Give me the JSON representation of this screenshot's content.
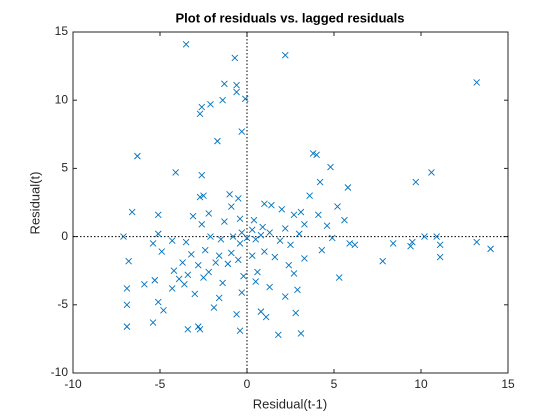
{
  "chart_data": {
    "type": "scatter",
    "title": "Plot of residuals vs. lagged residuals",
    "x_label": "Residual(t-1)",
    "y_label": "Residual(t)",
    "color": "#0072bd",
    "marker": "x",
    "xlim": [
      -10,
      15
    ],
    "ylim": [
      -10,
      15
    ],
    "xticks": [
      -10,
      -5,
      0,
      5,
      10,
      15
    ],
    "yticks": [
      -10,
      -5,
      0,
      5,
      10,
      15
    ],
    "x": [
      -3.5,
      -0.7,
      2.2,
      13.2,
      -1.3,
      -0.6,
      -2.1,
      -0.6,
      -1.4,
      -0.1,
      -2.6,
      -2.7,
      -0.3,
      -1.7,
      -6.3,
      -4.1,
      -2.6,
      3.8,
      4.0,
      4.8,
      10.6,
      9.7,
      4.2,
      5.8,
      3.6,
      -2.5,
      -2.7,
      -1.0,
      -0.5,
      -0.9,
      -2.2,
      -3.1,
      -5.1,
      -6.6,
      -2.6,
      -1.3,
      -0.4,
      0.4,
      1.0,
      1.4,
      2.0,
      2.7,
      3.1,
      4.1,
      5.2,
      4.6,
      5.6,
      3.3,
      2.2,
      0.9,
      0.3,
      -0.3,
      -0.8,
      -1.5,
      -2.1,
      -3.5,
      -4.3,
      -5.4,
      -7.1,
      -6.8,
      -5.1,
      -4.9,
      0.0,
      0.5,
      0.8,
      1.3,
      1.9,
      2.5,
      3.0,
      4.9,
      5.9,
      6.2,
      7.8,
      9.4,
      9.5,
      10.2,
      10.9,
      11.1,
      11.1,
      13.2,
      14.0,
      8.4,
      -0.4,
      -0.9,
      -1.6,
      -2.4,
      -3.2,
      -3.7,
      -4.2,
      -3.9,
      -3.4,
      -2.8,
      -2.2,
      -1.8,
      -1.1,
      -0.5,
      0.3,
      1.0,
      1.6,
      2.4,
      3.3,
      4.3,
      0.6,
      -0.2,
      -1.4,
      -2.5,
      -3.6,
      -4.3,
      -5.3,
      -5.9,
      -6.9,
      -6.9,
      -5.1,
      -5.4,
      -4.8,
      -3.4,
      -2.7,
      -2.8,
      -0.4,
      -0.6,
      0.8,
      1.1,
      -1.6,
      -0.3,
      0.5,
      1.3,
      2.2,
      2.7,
      2.9,
      2.8,
      3.1,
      1.8,
      -6.9,
      5.3,
      -3.0,
      -1.9
    ],
    "y": [
      14.1,
      13.1,
      13.3,
      11.3,
      11.2,
      11.1,
      9.7,
      10.6,
      10.0,
      10.1,
      9.5,
      9.0,
      7.7,
      7.0,
      5.9,
      4.7,
      4.5,
      6.1,
      6.0,
      5.1,
      4.7,
      4.0,
      4.0,
      3.6,
      3.0,
      3.0,
      2.9,
      3.1,
      2.8,
      2.2,
      1.7,
      1.5,
      1.6,
      1.8,
      0.9,
      1.1,
      1.3,
      1.2,
      2.4,
      2.3,
      2.0,
      1.6,
      1.8,
      1.6,
      2.2,
      0.8,
      1.2,
      0.9,
      0.6,
      0.7,
      0.5,
      0.3,
      0.0,
      -0.2,
      0.0,
      -0.4,
      -0.3,
      -0.5,
      0.0,
      -1.8,
      0.2,
      -1.1,
      -0.1,
      -0.2,
      0.1,
      0.3,
      -0.3,
      -0.6,
      0.2,
      -0.1,
      -0.5,
      -0.6,
      -1.8,
      -0.7,
      -0.4,
      0.0,
      0.0,
      -0.6,
      -1.5,
      -0.4,
      -0.9,
      -0.5,
      -0.5,
      -1.2,
      -1.4,
      -1.0,
      -1.3,
      -1.9,
      -2.5,
      -3.1,
      -2.8,
      -2.1,
      -2.6,
      -1.9,
      -2.0,
      -1.7,
      -1.4,
      -1.1,
      -1.5,
      -2.1,
      -1.6,
      -1.0,
      -2.6,
      -2.9,
      -3.4,
      -3.0,
      -3.5,
      -3.8,
      -3.2,
      -3.5,
      -3.8,
      -5.0,
      -4.8,
      -6.3,
      -5.4,
      -6.8,
      -6.8,
      -6.6,
      -6.9,
      -5.7,
      -5.5,
      -5.9,
      -4.5,
      -4.1,
      -3.3,
      -3.7,
      -4.4,
      -2.7,
      -3.9,
      -5.6,
      -7.1,
      -7.2,
      -6.6,
      -3.0,
      -4.2,
      -5.2
    ]
  }
}
